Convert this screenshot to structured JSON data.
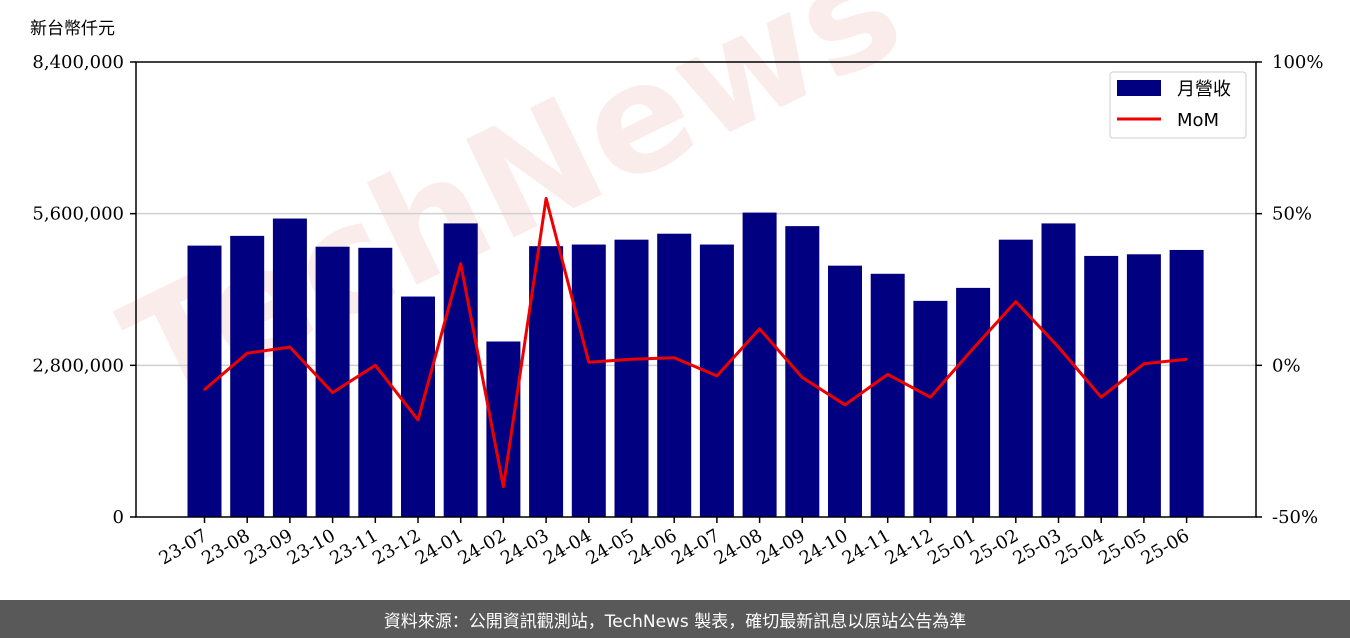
{
  "unit_label": "新台幣仟元",
  "footer_text": "資料來源：公開資訊觀測站，TechNews 製表，確切最新訊息以原站公告為準",
  "watermark_text": "TechNews",
  "colors": {
    "bar": "#000080",
    "line": "#ee0000",
    "footer_bg": "#595959",
    "grid": "#d0d0d0"
  },
  "chart_data": {
    "type": "bar",
    "categories": [
      "23-07",
      "23-08",
      "23-09",
      "23-10",
      "23-11",
      "23-12",
      "24-01",
      "24-02",
      "24-03",
      "24-04",
      "24-05",
      "24-06",
      "24-07",
      "24-08",
      "24-09",
      "24-10",
      "24-11",
      "24-12",
      "25-01",
      "25-02",
      "25-03",
      "25-04",
      "25-05",
      "25-06"
    ],
    "series": [
      {
        "name": "月營收",
        "type": "bar",
        "axis": "left",
        "values": [
          5010000,
          5190000,
          5510000,
          4990000,
          4970000,
          4070000,
          5420000,
          3240000,
          5000000,
          5030000,
          5120000,
          5230000,
          5030000,
          5620000,
          5370000,
          4640000,
          4490000,
          3990000,
          4230000,
          5120000,
          5420000,
          4820000,
          4850000,
          4930000
        ]
      },
      {
        "name": "MoM",
        "type": "line",
        "axis": "right",
        "values": [
          -8.0,
          4.0,
          6.0,
          -9.0,
          0.0,
          -18.0,
          33.5,
          -40.0,
          55.0,
          1.0,
          2.0,
          2.5,
          -3.5,
          12.0,
          -4.0,
          -13.0,
          -3.0,
          -10.5,
          5.5,
          21.0,
          6.0,
          -10.5,
          0.5,
          2.0
        ]
      }
    ],
    "y_left": {
      "ticks": [
        "0",
        "2,800,000",
        "5,600,000",
        "8,400,000"
      ],
      "ylim": [
        0,
        8400000
      ]
    },
    "y_right": {
      "ticks": [
        "-50%",
        "0%",
        "50%",
        "100%"
      ],
      "ylim": [
        -50,
        100
      ]
    },
    "grid": "horizontal",
    "legend_position": "top-right"
  }
}
